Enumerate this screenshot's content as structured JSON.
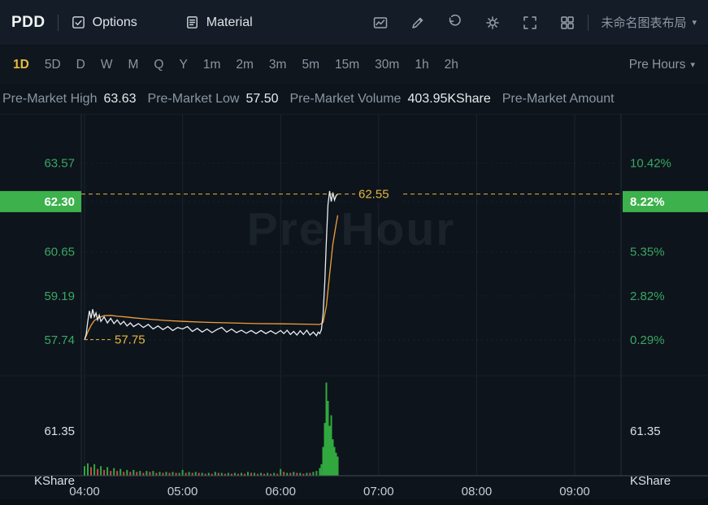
{
  "header": {
    "symbol": "PDD",
    "options_label": "Options",
    "material_label": "Material",
    "layout_label": "未命名图表布局",
    "icon_names": [
      "chart-snapshot",
      "draw",
      "reset",
      "settings",
      "fullscreen",
      "layout-grid"
    ]
  },
  "timeframes": {
    "items": [
      "1D",
      "5D",
      "D",
      "W",
      "M",
      "Q",
      "Y",
      "1m",
      "2m",
      "3m",
      "5m",
      "15m",
      "30m",
      "1h",
      "2h"
    ],
    "active": "1D",
    "session_label": "Pre Hours"
  },
  "info_bar": {
    "items": [
      {
        "label": "Pre-Market High",
        "value": "63.63"
      },
      {
        "label": "Pre-Market Low",
        "value": "57.50"
      },
      {
        "label": "Pre-Market Volume",
        "value": "403.95KShare"
      },
      {
        "label": "Pre-Market Amount",
        "value": ""
      }
    ]
  },
  "chart_data": {
    "type": "line",
    "watermark": "Pre Hour",
    "x_ticks": [
      {
        "label": "04:00",
        "min": 0
      },
      {
        "label": "05:00",
        "min": 60
      },
      {
        "label": "06:00",
        "min": 120
      },
      {
        "label": "07:00",
        "min": 180
      },
      {
        "label": "08:00",
        "min": 240
      },
      {
        "label": "09:00",
        "min": 300
      }
    ],
    "price_axis": {
      "labels": [
        {
          "text": "63.57",
          "value": 63.57
        },
        {
          "text": "62.30",
          "value": 62.3,
          "highlight": true
        },
        {
          "text": "60.65",
          "value": 60.65
        },
        {
          "text": "59.19",
          "value": 59.19
        },
        {
          "text": "57.74",
          "value": 57.74
        }
      ]
    },
    "percent_axis": {
      "labels": [
        {
          "text": "10.42%",
          "value": 63.57
        },
        {
          "text": "8.22%",
          "value": 62.3,
          "highlight": true
        },
        {
          "text": "5.35%",
          "value": 60.65
        },
        {
          "text": "2.82%",
          "value": 59.19
        },
        {
          "text": "0.29%",
          "value": 57.74
        }
      ]
    },
    "volume_axis_label": "61.35",
    "volume_unit_label": "KShare",
    "markers": {
      "current": {
        "text": "62.55",
        "value": 62.55
      },
      "open": {
        "text": "57.75",
        "value": 57.75
      }
    },
    "series": [
      {
        "name": "price",
        "points": [
          [
            0,
            57.74
          ],
          [
            1,
            57.92
          ],
          [
            2,
            58.35
          ],
          [
            3,
            58.7
          ],
          [
            4,
            58.45
          ],
          [
            5,
            58.75
          ],
          [
            6,
            58.5
          ],
          [
            7,
            58.63
          ],
          [
            8,
            58.4
          ],
          [
            9,
            58.56
          ],
          [
            10,
            58.35
          ],
          [
            12,
            58.5
          ],
          [
            14,
            58.3
          ],
          [
            16,
            58.45
          ],
          [
            18,
            58.28
          ],
          [
            20,
            58.4
          ],
          [
            22,
            58.25
          ],
          [
            24,
            58.35
          ],
          [
            26,
            58.2
          ],
          [
            28,
            58.3
          ],
          [
            30,
            58.18
          ],
          [
            33,
            58.28
          ],
          [
            36,
            58.15
          ],
          [
            39,
            58.25
          ],
          [
            42,
            58.1
          ],
          [
            45,
            58.2
          ],
          [
            48,
            58.08
          ],
          [
            51,
            58.18
          ],
          [
            54,
            58.05
          ],
          [
            57,
            58.15
          ],
          [
            60,
            58.1
          ],
          [
            63,
            58.18
          ],
          [
            66,
            58.02
          ],
          [
            69,
            58.12
          ],
          [
            72,
            58.0
          ],
          [
            75,
            58.1
          ],
          [
            78,
            57.98
          ],
          [
            81,
            58.08
          ],
          [
            84,
            58.15
          ],
          [
            87,
            58.0
          ],
          [
            90,
            58.1
          ],
          [
            93,
            57.98
          ],
          [
            96,
            58.06
          ],
          [
            99,
            57.96
          ],
          [
            102,
            58.05
          ],
          [
            105,
            57.95
          ],
          [
            108,
            58.05
          ],
          [
            111,
            57.95
          ],
          [
            114,
            58.04
          ],
          [
            117,
            57.94
          ],
          [
            120,
            58.05
          ],
          [
            122,
            57.95
          ],
          [
            124,
            58.06
          ],
          [
            126,
            57.92
          ],
          [
            128,
            58.02
          ],
          [
            130,
            57.9
          ],
          [
            132,
            58.04
          ],
          [
            134,
            57.92
          ],
          [
            136,
            58.06
          ],
          [
            138,
            57.9
          ],
          [
            140,
            58.0
          ],
          [
            142,
            57.88
          ],
          [
            143,
            58.0
          ],
          [
            144,
            57.95
          ],
          [
            145,
            58.08
          ],
          [
            146,
            58.6
          ],
          [
            147,
            59.6
          ],
          [
            148,
            61.0
          ],
          [
            149,
            62.2
          ],
          [
            150,
            62.65
          ],
          [
            151,
            62.3
          ],
          [
            152,
            62.6
          ],
          [
            153,
            62.35
          ],
          [
            154,
            62.5
          ],
          [
            155,
            62.55
          ]
        ]
      },
      {
        "name": "avg",
        "points": [
          [
            0,
            57.74
          ],
          [
            2,
            58.0
          ],
          [
            4,
            58.22
          ],
          [
            6,
            58.38
          ],
          [
            9,
            58.48
          ],
          [
            12,
            58.54
          ],
          [
            16,
            58.55
          ],
          [
            20,
            58.52
          ],
          [
            25,
            58.5
          ],
          [
            30,
            58.47
          ],
          [
            40,
            58.42
          ],
          [
            50,
            58.38
          ],
          [
            60,
            58.35
          ],
          [
            75,
            58.32
          ],
          [
            90,
            58.3
          ],
          [
            105,
            58.28
          ],
          [
            120,
            58.27
          ],
          [
            135,
            58.26
          ],
          [
            144,
            58.25
          ],
          [
            146,
            58.32
          ],
          [
            148,
            58.85
          ],
          [
            150,
            59.9
          ],
          [
            152,
            60.9
          ],
          [
            154,
            61.55
          ],
          [
            155,
            61.85
          ]
        ]
      }
    ],
    "volume_bars": [
      [
        0,
        0.1,
        "g"
      ],
      [
        2,
        0.13,
        "g"
      ],
      [
        4,
        0.09,
        "r"
      ],
      [
        6,
        0.12,
        "g"
      ],
      [
        8,
        0.07,
        "r"
      ],
      [
        10,
        0.1,
        "g"
      ],
      [
        12,
        0.06,
        "r"
      ],
      [
        14,
        0.09,
        "g"
      ],
      [
        16,
        0.05,
        "r"
      ],
      [
        18,
        0.08,
        "g"
      ],
      [
        20,
        0.05,
        "r"
      ],
      [
        22,
        0.07,
        "g"
      ],
      [
        24,
        0.04,
        "r"
      ],
      [
        26,
        0.06,
        "g"
      ],
      [
        28,
        0.04,
        "r"
      ],
      [
        30,
        0.06,
        "g"
      ],
      [
        32,
        0.04,
        "r"
      ],
      [
        34,
        0.05,
        "g"
      ],
      [
        36,
        0.03,
        "r"
      ],
      [
        38,
        0.05,
        "g"
      ],
      [
        40,
        0.04,
        "r"
      ],
      [
        42,
        0.05,
        "g"
      ],
      [
        44,
        0.03,
        "r"
      ],
      [
        46,
        0.04,
        "g"
      ],
      [
        48,
        0.03,
        "r"
      ],
      [
        50,
        0.04,
        "g"
      ],
      [
        52,
        0.03,
        "r"
      ],
      [
        54,
        0.04,
        "g"
      ],
      [
        56,
        0.03,
        "r"
      ],
      [
        58,
        0.03,
        "g"
      ],
      [
        60,
        0.06,
        "g"
      ],
      [
        62,
        0.03,
        "r"
      ],
      [
        64,
        0.04,
        "g"
      ],
      [
        66,
        0.03,
        "r"
      ],
      [
        68,
        0.04,
        "g"
      ],
      [
        70,
        0.03,
        "r"
      ],
      [
        72,
        0.03,
        "g"
      ],
      [
        74,
        0.02,
        "r"
      ],
      [
        76,
        0.03,
        "g"
      ],
      [
        78,
        0.02,
        "r"
      ],
      [
        80,
        0.04,
        "g"
      ],
      [
        82,
        0.03,
        "r"
      ],
      [
        84,
        0.03,
        "g"
      ],
      [
        86,
        0.02,
        "r"
      ],
      [
        88,
        0.03,
        "g"
      ],
      [
        90,
        0.02,
        "r"
      ],
      [
        92,
        0.03,
        "g"
      ],
      [
        94,
        0.02,
        "r"
      ],
      [
        96,
        0.03,
        "g"
      ],
      [
        98,
        0.02,
        "r"
      ],
      [
        100,
        0.04,
        "g"
      ],
      [
        102,
        0.03,
        "r"
      ],
      [
        104,
        0.03,
        "g"
      ],
      [
        106,
        0.02,
        "r"
      ],
      [
        108,
        0.03,
        "g"
      ],
      [
        110,
        0.02,
        "r"
      ],
      [
        112,
        0.03,
        "g"
      ],
      [
        114,
        0.02,
        "r"
      ],
      [
        116,
        0.03,
        "g"
      ],
      [
        118,
        0.02,
        "r"
      ],
      [
        120,
        0.07,
        "g"
      ],
      [
        122,
        0.04,
        "r"
      ],
      [
        124,
        0.03,
        "g"
      ],
      [
        126,
        0.03,
        "r"
      ],
      [
        128,
        0.04,
        "g"
      ],
      [
        130,
        0.03,
        "r"
      ],
      [
        132,
        0.03,
        "g"
      ],
      [
        134,
        0.02,
        "r"
      ],
      [
        136,
        0.03,
        "g"
      ],
      [
        138,
        0.03,
        "r"
      ],
      [
        140,
        0.04,
        "g"
      ],
      [
        142,
        0.05,
        "g"
      ],
      [
        144,
        0.08,
        "g"
      ],
      [
        145,
        0.12,
        "g"
      ],
      [
        146,
        0.3,
        "g"
      ],
      [
        147,
        0.55,
        "g"
      ],
      [
        148,
        0.97,
        "g"
      ],
      [
        149,
        0.78,
        "g"
      ],
      [
        150,
        0.52,
        "g"
      ],
      [
        151,
        0.63,
        "g"
      ],
      [
        152,
        0.38,
        "g"
      ],
      [
        153,
        0.3,
        "g"
      ],
      [
        154,
        0.24,
        "g"
      ],
      [
        155,
        0.2,
        "g"
      ]
    ],
    "colors": {
      "up_green": "#31a83e",
      "down_red": "#c9494f",
      "axis_green": "#3aa763",
      "highlight_green": "#3cb14c",
      "gold": "#e5b73e",
      "price_line": "#e9eef2",
      "avg_line": "#ef9f3a"
    }
  }
}
